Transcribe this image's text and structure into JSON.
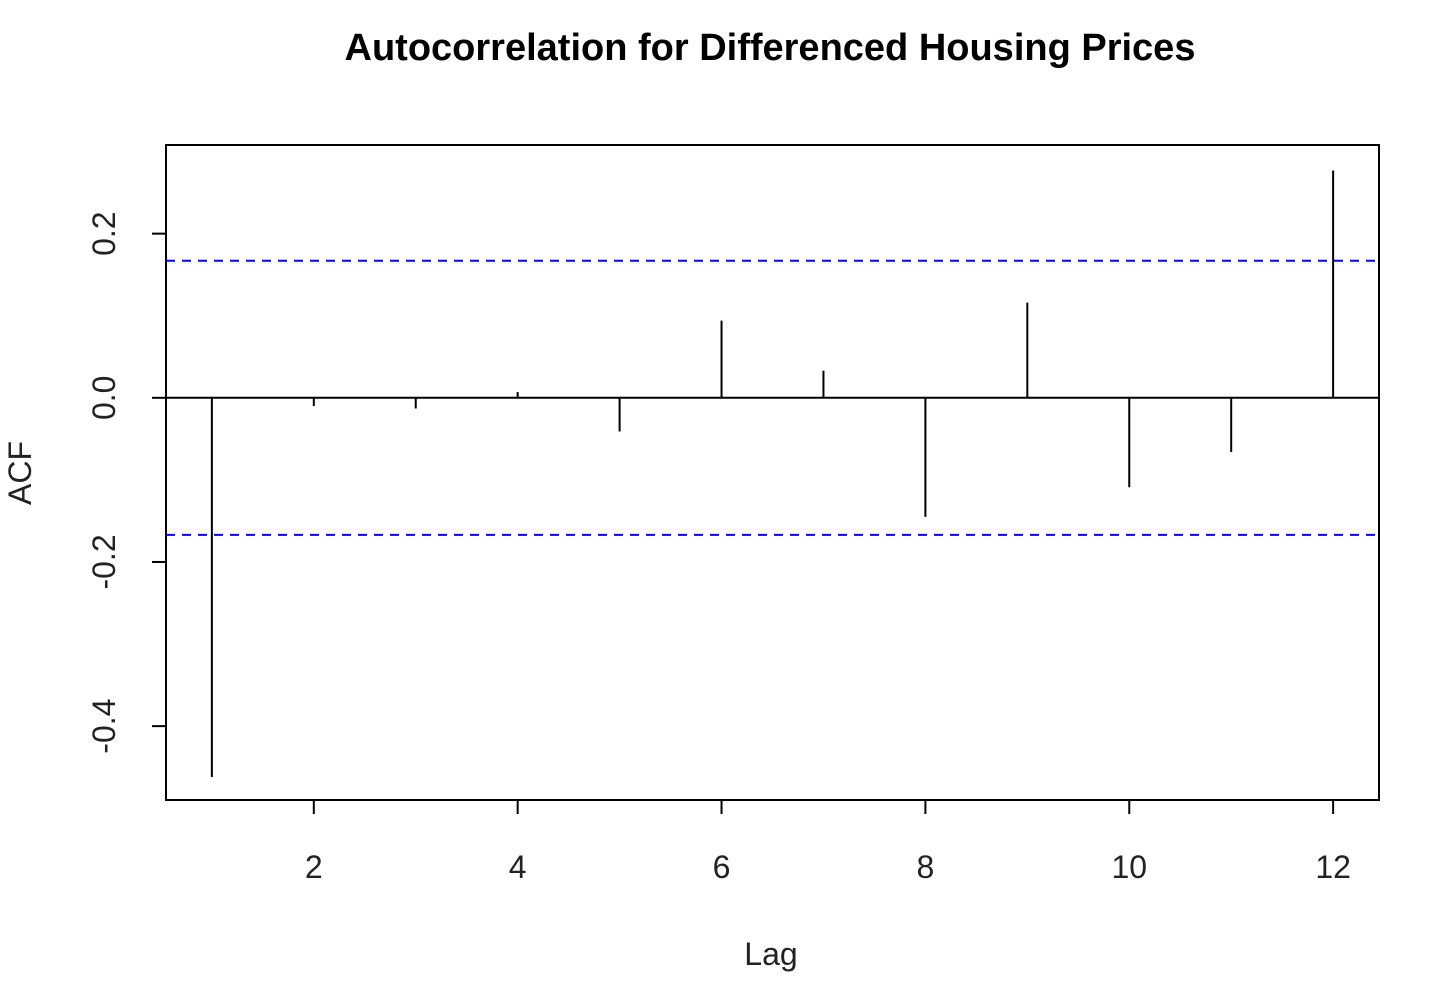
{
  "chart_data": {
    "type": "bar",
    "style": "acf-spikes",
    "title": "Autocorrelation for Differenced Housing Prices",
    "xlabel": "Lag",
    "ylabel": "ACF",
    "x": [
      1,
      2,
      3,
      4,
      5,
      6,
      7,
      8,
      9,
      10,
      11,
      12
    ],
    "values": [
      -0.462,
      -0.01,
      -0.013,
      0.007,
      -0.041,
      0.094,
      0.033,
      -0.145,
      0.116,
      -0.109,
      -0.066,
      0.277
    ],
    "confidence_bound": 0.167,
    "xlim": [
      0.55,
      12.45
    ],
    "ylim": [
      -0.49,
      0.308
    ],
    "xticks": [
      2,
      4,
      6,
      8,
      10,
      12
    ],
    "xtick_labels": [
      "2",
      "4",
      "6",
      "8",
      "10",
      "12"
    ],
    "yticks": [
      -0.4,
      -0.2,
      0.0,
      0.2
    ],
    "ytick_labels": [
      "-0.4",
      "-0.2",
      "0.0",
      "0.2"
    ],
    "grid": false,
    "legend": "none",
    "colors": {
      "spike": "#000000",
      "confidence_line": "#0000ff",
      "zero_line": "#000000",
      "frame": "#000000"
    }
  }
}
